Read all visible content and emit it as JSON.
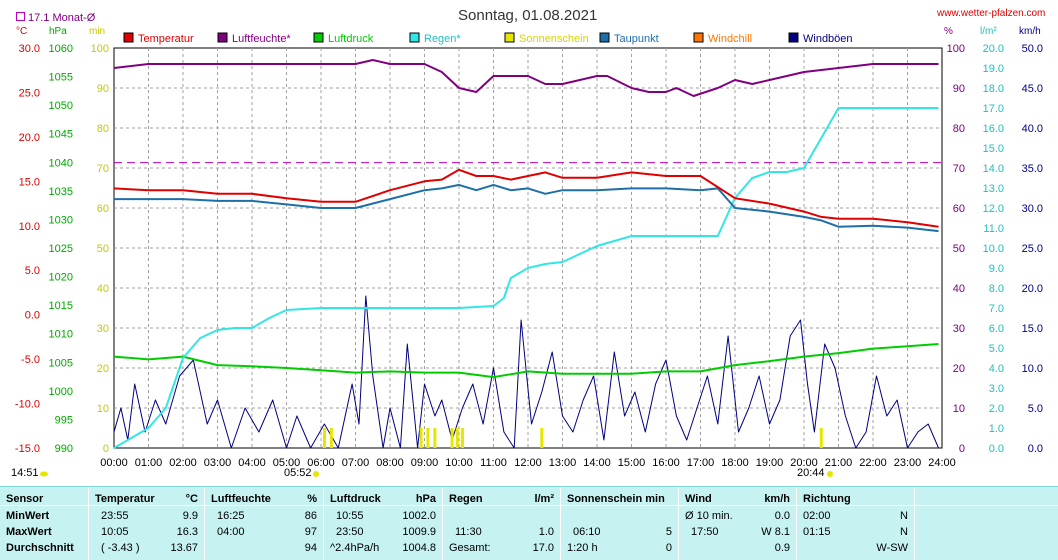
{
  "header": {
    "title": "Sonntag, 01.08.2021",
    "website": "www.wetter-pfalzen.com",
    "monthly_avg": "17.1 Monat-Ø",
    "sunrise": "05:52",
    "sunset": "20:44",
    "left_time": "14:51",
    "units": {
      "temp": "°C",
      "pressure": "hPa",
      "sun": "min",
      "hum": "%",
      "rain": "l/m²",
      "wind": "km/h"
    }
  },
  "legend": [
    {
      "label": "Temperatur",
      "color": "#e00000"
    },
    {
      "label": "Luftfeuchte*",
      "color": "#800080"
    },
    {
      "label": "Luftdruck",
      "color": "#00cc00"
    },
    {
      "label": "Regen*",
      "color": "#33e6e6"
    },
    {
      "label": "Sonnenschein",
      "color": "#e6e600"
    },
    {
      "label": "Taupunkt",
      "color": "#1e6fa8"
    },
    {
      "label": "Windchill",
      "color": "#ff7700"
    },
    {
      "label": "Windböen",
      "color": "#000080"
    }
  ],
  "chart_data": {
    "type": "line",
    "title": "Sonntag, 01.08.2021",
    "x_ticks": [
      "00:00",
      "01:00",
      "02:00",
      "03:00",
      "04:00",
      "05:00",
      "06:00",
      "07:00",
      "08:00",
      "09:00",
      "10:00",
      "11:00",
      "12:00",
      "13:00",
      "14:00",
      "15:00",
      "16:00",
      "17:00",
      "18:00",
      "19:00",
      "20:00",
      "21:00",
      "22:00",
      "23:00",
      "24:00"
    ],
    "axes": {
      "temperature": {
        "unit": "°C",
        "ticks": [
          "30.0",
          "25.0",
          "20.0",
          "15.0",
          "10.0",
          "5.0",
          "0.0",
          "-5.0",
          "-10.0",
          "-15.0"
        ],
        "range": [
          -15,
          30
        ]
      },
      "pressure": {
        "unit": "hPa",
        "ticks": [
          "1060",
          "1055",
          "1050",
          "1045",
          "1040",
          "1035",
          "1030",
          "1025",
          "1020",
          "1015",
          "1010",
          "1005",
          "1000",
          "995",
          "990"
        ],
        "range": [
          990,
          1060
        ]
      },
      "sunshine": {
        "unit": "min",
        "ticks": [
          "100",
          "90",
          "80",
          "70",
          "60",
          "50",
          "40",
          "30",
          "20",
          "10",
          "0"
        ],
        "range": [
          0,
          100
        ]
      },
      "humidity": {
        "unit": "%",
        "ticks": [
          "100",
          "90",
          "80",
          "70",
          "60",
          "50",
          "40",
          "30",
          "20",
          "10",
          "0"
        ],
        "range": [
          0,
          100
        ]
      },
      "rain": {
        "unit": "l/m²",
        "ticks": [
          "20.0",
          "19.0",
          "18.0",
          "17.0",
          "16.0",
          "15.0",
          "14.0",
          "13.0",
          "12.0",
          "11.0",
          "10.0",
          "9.0",
          "8.0",
          "7.0",
          "6.0",
          "5.0",
          "4.0",
          "3.0",
          "2.0",
          "1.0",
          "0.0"
        ],
        "range": [
          0,
          20
        ]
      },
      "wind": {
        "unit": "km/h",
        "ticks": [
          "50.0",
          "45.0",
          "40.0",
          "35.0",
          "30.0",
          "25.0",
          "20.0",
          "15.0",
          "10.0",
          "5.0",
          "0.0"
        ],
        "range": [
          0,
          50
        ]
      }
    },
    "monthly_avg_temp": 17.1,
    "series": [
      {
        "name": "Temperatur",
        "axis": "temperature",
        "x": [
          0,
          1,
          2,
          3,
          4,
          5,
          6,
          7,
          8,
          9,
          9.5,
          10,
          10.5,
          11,
          11.5,
          12,
          12.5,
          13,
          14,
          15,
          16,
          17,
          18,
          19,
          20,
          20.5,
          21,
          22,
          23,
          23.9
        ],
        "y": [
          14.2,
          14.0,
          14.0,
          13.6,
          13.6,
          13.1,
          12.7,
          12.7,
          14.0,
          15.0,
          15.2,
          16.3,
          15.6,
          15.6,
          15.2,
          15.6,
          16.0,
          15.4,
          15.4,
          16.0,
          15.6,
          15.6,
          13.1,
          12.5,
          11.6,
          11.0,
          10.8,
          10.8,
          10.4,
          9.9
        ]
      },
      {
        "name": "Luftfeuchte*",
        "axis": "humidity",
        "x": [
          0,
          1,
          2,
          3,
          4,
          5,
          6,
          7,
          7.5,
          8,
          9,
          9.5,
          10,
          10.5,
          11,
          12,
          12.5,
          13,
          14,
          14.3,
          15,
          15.5,
          16,
          16.3,
          16.8,
          17.5,
          18,
          18.5,
          19,
          20,
          21,
          22,
          23,
          23.9
        ],
        "y": [
          95,
          96,
          96,
          96,
          96,
          96,
          96,
          96,
          97,
          96,
          96,
          94,
          90,
          89,
          93,
          93,
          91,
          91,
          93,
          93,
          90,
          89,
          89,
          90,
          88,
          90,
          92,
          91,
          92,
          94,
          95,
          96,
          96,
          96
        ]
      },
      {
        "name": "Luftdruck",
        "axis": "pressure",
        "x": [
          0,
          1,
          2,
          3,
          4,
          5,
          6,
          7,
          8,
          9,
          10,
          11,
          12,
          13,
          14,
          15,
          16,
          17,
          18,
          19,
          20,
          21,
          22,
          23,
          23.9
        ],
        "y": [
          1006.0,
          1005.5,
          1006.0,
          1004.5,
          1004.3,
          1004.0,
          1003.6,
          1003.2,
          1003.4,
          1003.2,
          1003.2,
          1002.4,
          1003.4,
          1003.0,
          1003.0,
          1003.0,
          1003.4,
          1003.4,
          1004.5,
          1005.2,
          1006.0,
          1006.6,
          1007.4,
          1007.8,
          1008.2
        ]
      },
      {
        "name": "Regen*",
        "axis": "rain",
        "x": [
          0,
          1,
          1.5,
          2,
          2.5,
          3,
          3.5,
          4,
          4.5,
          5,
          6,
          7,
          8,
          9,
          10,
          11,
          11.3,
          11.5,
          12,
          12.5,
          13,
          13.5,
          14,
          15,
          16,
          17,
          17.5,
          18,
          18.5,
          19,
          19.5,
          20,
          20.5,
          21,
          22,
          23,
          23.9
        ],
        "y": [
          0,
          1.0,
          2.0,
          4.5,
          5.5,
          5.9,
          6.0,
          6.0,
          6.5,
          6.9,
          7.0,
          7.0,
          7.0,
          7.0,
          7.0,
          7.1,
          7.5,
          8.5,
          9.0,
          9.2,
          9.3,
          9.7,
          10.1,
          10.6,
          10.6,
          10.6,
          10.6,
          12.5,
          13.5,
          13.8,
          13.8,
          14.0,
          15.5,
          17.0,
          17.0,
          17.0,
          17.0
        ]
      },
      {
        "name": "Taupunkt",
        "axis": "temperature",
        "x": [
          0,
          1,
          2,
          3,
          4,
          5,
          6,
          7,
          8,
          9,
          9.5,
          10,
          10.5,
          11,
          11.5,
          12,
          12.5,
          13,
          14,
          15,
          16,
          17,
          17.5,
          18,
          19,
          20,
          20.5,
          21,
          22,
          23,
          23.9
        ],
        "y": [
          13.0,
          13.0,
          13.0,
          12.8,
          12.8,
          12.4,
          12.0,
          12.0,
          13.0,
          14.0,
          14.2,
          14.6,
          14.0,
          14.6,
          14.0,
          14.2,
          13.6,
          14.0,
          14.0,
          14.2,
          14.2,
          14.0,
          14.2,
          12.0,
          11.6,
          11.0,
          10.6,
          9.9,
          10.0,
          9.8,
          9.4
        ]
      },
      {
        "name": "Windböen",
        "axis": "wind",
        "x": [
          0,
          0.2,
          0.4,
          0.6,
          0.9,
          1.2,
          1.5,
          1.9,
          2.3,
          2.7,
          3.0,
          3.4,
          3.8,
          4.2,
          4.6,
          5.0,
          5.3,
          5.7,
          6.1,
          6.5,
          6.9,
          7.1,
          7.3,
          7.5,
          7.8,
          8.0,
          8.3,
          8.5,
          8.8,
          9.0,
          9.3,
          9.5,
          9.8,
          10.1,
          10.4,
          10.7,
          11.0,
          11.3,
          11.6,
          11.8,
          12.1,
          12.4,
          12.7,
          13.0,
          13.3,
          13.6,
          13.9,
          14.2,
          14.5,
          14.8,
          15.1,
          15.4,
          15.7,
          16.0,
          16.3,
          16.6,
          16.9,
          17.2,
          17.5,
          17.8,
          18.1,
          18.4,
          18.7,
          19.0,
          19.3,
          19.6,
          19.9,
          20.1,
          20.3,
          20.6,
          20.9,
          21.2,
          21.5,
          21.8,
          22.1,
          22.4,
          22.7,
          23.0,
          23.3,
          23.6,
          23.9
        ],
        "y": [
          2,
          5,
          1,
          8,
          2,
          6,
          3,
          9,
          11,
          3,
          6,
          0,
          5,
          2,
          6,
          0,
          4,
          0,
          3,
          0,
          8,
          3,
          19,
          9,
          0,
          5,
          0,
          13,
          0,
          8,
          4,
          6,
          1,
          5,
          8,
          3,
          10,
          2,
          0,
          16,
          3,
          7,
          12,
          4,
          2,
          6,
          9,
          1,
          12,
          4,
          7,
          2,
          8,
          11,
          4,
          1,
          5,
          9,
          3,
          14,
          2,
          5,
          9,
          3,
          6,
          14,
          16,
          8,
          2,
          13,
          10,
          4,
          0,
          2,
          9,
          4,
          6,
          0,
          2,
          3,
          0
        ]
      },
      {
        "name": "Sonnenschein",
        "axis": "sunshine",
        "x": [
          6.1,
          6.3,
          8.9,
          9.1,
          9.3,
          9.8,
          9.95,
          10.1,
          12.4,
          20.5
        ],
        "y": [
          5,
          5,
          5,
          5,
          5,
          5,
          5,
          5,
          5,
          5
        ]
      }
    ]
  },
  "stats_table": {
    "rows": [
      "Sensor",
      "MinWert",
      "MaxWert",
      "Durchschnitt"
    ],
    "temperature": {
      "header": "Temperatur",
      "unit": "°C",
      "min_time": "23:55",
      "min": "9.9",
      "max_time": "10:05",
      "max": "16.3",
      "avg_time": "( -3.43 )",
      "avg": "13.67"
    },
    "humidity": {
      "header": "Luftfeuchte",
      "unit": "%",
      "min_time": "16:25",
      "min": "86",
      "max_time": "04:00",
      "max": "97",
      "avg": "94"
    },
    "pressure": {
      "header": "Luftdruck",
      "unit": "hPa",
      "min_time": "10:55",
      "min": "1002.0",
      "max_time": "23:50",
      "max": "1009.9",
      "avg_time": "^2.4hPa/h",
      "avg": "1004.8"
    },
    "rain": {
      "header": "Regen",
      "unit": "l/m²",
      "max_time": "11:30",
      "max": "1.0",
      "avg_label": "Gesamt:",
      "avg": "17.0"
    },
    "sunshine": {
      "header": "Sonnenschein min",
      "max_time": "06:10",
      "max": "5",
      "avg_label": "1:20 h",
      "avg": "0"
    },
    "wind": {
      "header": "Wind",
      "unit": "km/h",
      "min_time": "Ø 10 min.",
      "min": "0.0",
      "max_time": "17:50",
      "max": "W 8.1",
      "avg": "0.9"
    },
    "direction": {
      "header": "Richtung",
      "min_time": "02:00",
      "min": "N",
      "max_time": "01:15",
      "max": "N",
      "avg": "W-SW"
    }
  }
}
